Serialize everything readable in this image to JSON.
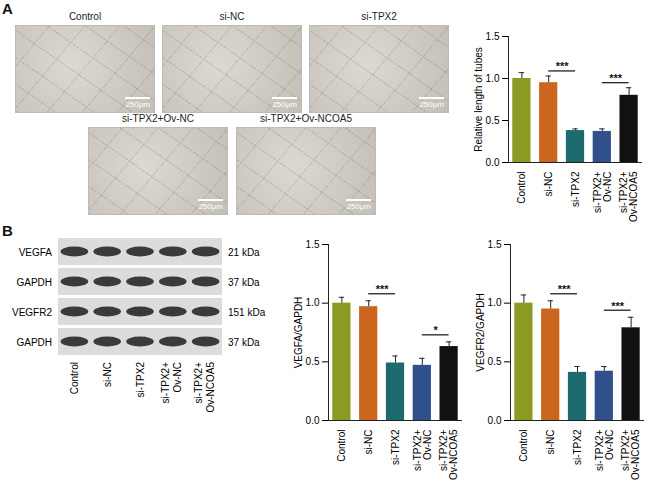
{
  "panel_a": {
    "label": "A",
    "images": [
      {
        "title": "Control",
        "scale_bar": "250μm"
      },
      {
        "title": "si-NC",
        "scale_bar": "250μm"
      },
      {
        "title": "si-TPX2",
        "scale_bar": "250μm"
      },
      {
        "title": "si-TPX2+Ov-NC",
        "scale_bar": "250μm"
      },
      {
        "title": "si-TPX2+Ov-NCOA5",
        "scale_bar": "250μm"
      }
    ]
  },
  "panel_b": {
    "label": "B",
    "blot": {
      "bands": [
        {
          "name": "VEGFA",
          "size": "21 kDa"
        },
        {
          "name": "GAPDH",
          "size": "37 kDa"
        },
        {
          "name": "VEGFR2",
          "size": "151 kDa"
        },
        {
          "name": "GAPDH",
          "size": "37 kDa"
        }
      ],
      "lanes": [
        "Control",
        "si-NC",
        "si-TPX2",
        "si-TPX2+\nOv-NC",
        "si-TPX2+\nOv-NCOA5"
      ]
    }
  },
  "chart_data": [
    {
      "type": "bar",
      "ylabel": "Relative length of tubes",
      "categories": [
        "Control",
        "si-NC",
        "si-TPX2",
        "si-TPX2+\nOv-NC",
        "si-TPX2+\nOv-NCOA5"
      ],
      "values": [
        1.0,
        0.95,
        0.38,
        0.37,
        0.8
      ],
      "errors": [
        0.07,
        0.08,
        0.02,
        0.03,
        0.09
      ],
      "colors": [
        "#8a9a22",
        "#cc661e",
        "#1d6b6e",
        "#30508c",
        "#111111"
      ],
      "ylim": [
        0,
        1.5
      ],
      "yticks": [
        {
          "value": 0,
          "label": "0.0"
        },
        {
          "value": 0.5,
          "label": "0.5"
        },
        {
          "value": 1.0,
          "label": "1.0"
        },
        {
          "value": 1.5,
          "label": "1.5"
        }
      ],
      "annotations": [
        {
          "between": [
            1,
            2
          ],
          "label": "***"
        },
        {
          "between": [
            3,
            4
          ],
          "label": "***"
        }
      ]
    },
    {
      "type": "bar",
      "ylabel": "VEGFA/GAPDH",
      "categories": [
        "Control",
        "si-NC",
        "si-TPX2",
        "si-TPX2+\nOv-NC",
        "si-TPX2+\nOv-NCOA5"
      ],
      "values": [
        1.0,
        0.97,
        0.49,
        0.47,
        0.63
      ],
      "errors": [
        0.05,
        0.05,
        0.06,
        0.06,
        0.04
      ],
      "colors": [
        "#8a9a22",
        "#cc661e",
        "#1d6b6e",
        "#30508c",
        "#111111"
      ],
      "ylim": [
        0,
        1.5
      ],
      "yticks": [
        {
          "value": 0,
          "label": "0.0"
        },
        {
          "value": 0.5,
          "label": "0.5"
        },
        {
          "value": 1.0,
          "label": "1.0"
        },
        {
          "value": 1.5,
          "label": "1.5"
        }
      ],
      "annotations": [
        {
          "between": [
            1,
            2
          ],
          "label": "***"
        },
        {
          "between": [
            3,
            4
          ],
          "label": "*"
        }
      ]
    },
    {
      "type": "bar",
      "ylabel": "VEGFR2/GAPDH",
      "categories": [
        "Control",
        "si-NC",
        "si-TPX2",
        "si-TPX2+\nOv-NC",
        "si-TPX2+\nOv-NCOA5"
      ],
      "values": [
        1.0,
        0.95,
        0.41,
        0.42,
        0.79
      ],
      "errors": [
        0.07,
        0.07,
        0.05,
        0.04,
        0.09
      ],
      "colors": [
        "#8a9a22",
        "#cc661e",
        "#1d6b6e",
        "#30508c",
        "#111111"
      ],
      "ylim": [
        0,
        1.5
      ],
      "yticks": [
        {
          "value": 0,
          "label": "0.0"
        },
        {
          "value": 0.5,
          "label": "0.5"
        },
        {
          "value": 1.0,
          "label": "1.0"
        },
        {
          "value": 1.5,
          "label": "1.5"
        }
      ],
      "annotations": [
        {
          "between": [
            1,
            2
          ],
          "label": "***"
        },
        {
          "between": [
            3,
            4
          ],
          "label": "***"
        }
      ]
    }
  ]
}
